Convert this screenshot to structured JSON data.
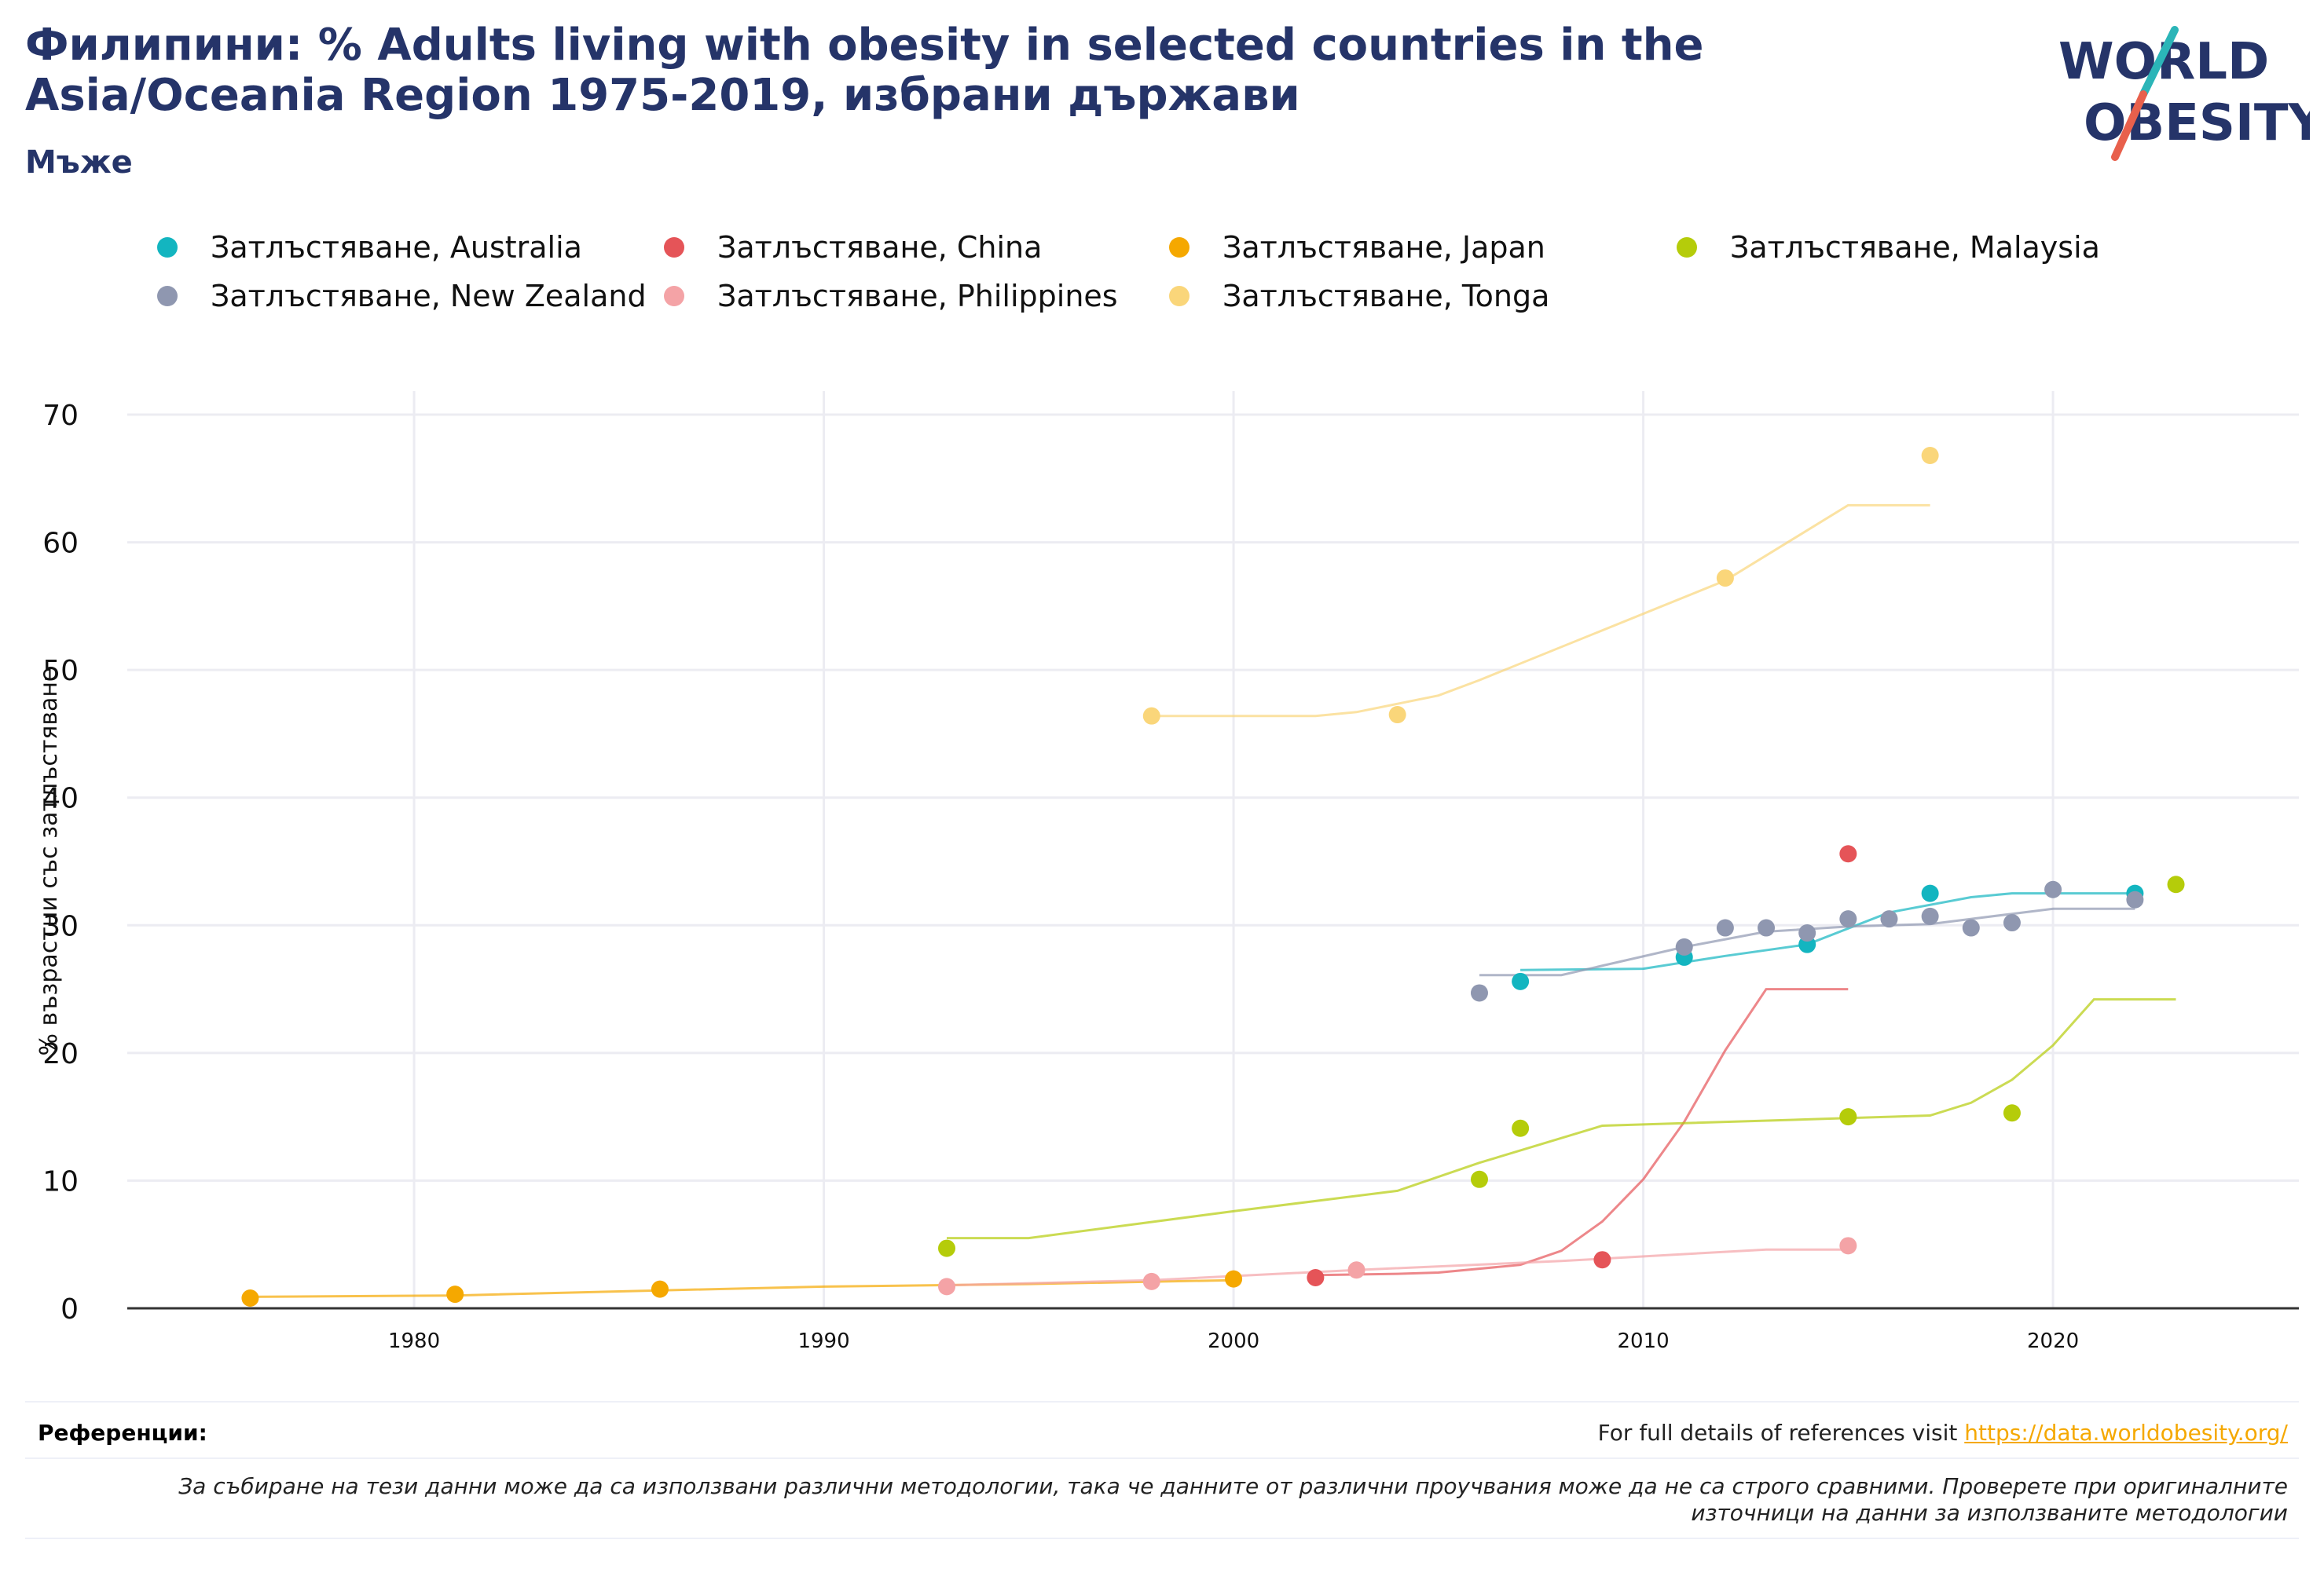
{
  "header": {
    "title": "Филипини: % Adults living with obesity in selected countries in the Asia/Oceania Region 1975-2019, избрани държави",
    "subtitle": "Мъже"
  },
  "logo": {
    "line1": "WORLD",
    "line2": "OBESITY",
    "text_color": "#253469",
    "slash_top_color": "#2bb5b8",
    "slash_bottom_color": "#e8604c"
  },
  "legend": [
    {
      "label": "Затлъстяване, Australia",
      "color": "#13b5c0"
    },
    {
      "label": "Затлъстяване, China",
      "color": "#e55458"
    },
    {
      "label": "Затлъстяване, Japan",
      "color": "#f5a800"
    },
    {
      "label": "Затлъстяване, Malaysia",
      "color": "#b5cc0a"
    },
    {
      "label": "Затлъстяване, New Zealand",
      "color": "#8f97b0"
    },
    {
      "label": "Затлъстяване, Philippines",
      "color": "#f4a3a6"
    },
    {
      "label": "Затлъстяване, Tonga",
      "color": "#fad67a"
    }
  ],
  "chart_data": {
    "type": "scatter",
    "ylabel": "% възрастни със затлъстяване",
    "xlabel": "",
    "xlim": [
      1973,
      2026
    ],
    "ylim": [
      0,
      70
    ],
    "x_ticks": [
      1980,
      1990,
      2000,
      2010,
      2020
    ],
    "y_ticks": [
      0,
      10,
      20,
      30,
      40,
      50,
      60,
      70
    ],
    "grid": true,
    "legend_position": "top",
    "series": [
      {
        "name": "Затлъстяване, Australia",
        "color": "#13b5c0",
        "points": [
          [
            2007,
            25.6
          ],
          [
            2011,
            27.5
          ],
          [
            2014,
            28.5
          ],
          [
            2017,
            32.5
          ],
          [
            2022,
            32.5
          ]
        ],
        "trend": [
          [
            2007,
            26.5
          ],
          [
            2010,
            26.6
          ],
          [
            2012,
            27.6
          ],
          [
            2014,
            28.5
          ],
          [
            2016,
            31.0
          ],
          [
            2018,
            32.2
          ],
          [
            2019,
            32.5
          ],
          [
            2022,
            32.5
          ]
        ]
      },
      {
        "name": "Затлъстяване, China",
        "color": "#e55458",
        "points": [
          [
            2002,
            2.4
          ],
          [
            2009,
            3.8
          ],
          [
            2015,
            35.6
          ]
        ],
        "trend": [
          [
            2002,
            2.6
          ],
          [
            2004,
            2.7
          ],
          [
            2005,
            2.8
          ],
          [
            2007,
            3.4
          ],
          [
            2008,
            4.5
          ],
          [
            2009,
            6.8
          ],
          [
            2010,
            10.1
          ],
          [
            2011,
            14.6
          ],
          [
            2012,
            20.2
          ],
          [
            2013,
            25.0
          ],
          [
            2015,
            25.0
          ]
        ]
      },
      {
        "name": "Затлъстяване, Japan",
        "color": "#f5a800",
        "points": [
          [
            1976,
            0.8
          ],
          [
            1981,
            1.1
          ],
          [
            1986,
            1.5
          ],
          [
            2000,
            2.3
          ]
        ],
        "trend": [
          [
            1976,
            0.9
          ],
          [
            1981,
            1.0
          ],
          [
            1986,
            1.4
          ],
          [
            1990,
            1.7
          ],
          [
            1995,
            1.9
          ],
          [
            2000,
            2.2
          ]
        ]
      },
      {
        "name": "Затлъстяване, Malaysia",
        "color": "#b5cc0a",
        "points": [
          [
            1993,
            4.7
          ],
          [
            2006,
            10.1
          ],
          [
            2007,
            14.1
          ],
          [
            2015,
            15.0
          ],
          [
            2019,
            15.3
          ],
          [
            2023,
            33.2
          ]
        ],
        "trend": [
          [
            1993,
            5.5
          ],
          [
            1995,
            5.5
          ],
          [
            2000,
            7.6
          ],
          [
            2004,
            9.2
          ],
          [
            2006,
            11.4
          ],
          [
            2009,
            14.3
          ],
          [
            2015,
            14.9
          ],
          [
            2017,
            15.1
          ],
          [
            2018,
            16.1
          ],
          [
            2019,
            17.9
          ],
          [
            2020,
            20.6
          ],
          [
            2021,
            24.2
          ],
          [
            2023,
            24.2
          ]
        ]
      },
      {
        "name": "Затлъстяване, New Zealand",
        "color": "#8f97b0",
        "points": [
          [
            2006,
            24.7
          ],
          [
            2011,
            28.3
          ],
          [
            2012,
            29.8
          ],
          [
            2013,
            29.8
          ],
          [
            2014,
            29.4
          ],
          [
            2015,
            30.5
          ],
          [
            2016,
            30.5
          ],
          [
            2017,
            30.7
          ],
          [
            2018,
            29.8
          ],
          [
            2019,
            30.2
          ],
          [
            2020,
            32.8
          ],
          [
            2022,
            32.0
          ]
        ],
        "trend": [
          [
            2006,
            26.1
          ],
          [
            2008,
            26.1
          ],
          [
            2011,
            28.3
          ],
          [
            2013,
            29.5
          ],
          [
            2015,
            29.9
          ],
          [
            2017,
            30.1
          ],
          [
            2019,
            30.9
          ],
          [
            2020,
            31.3
          ],
          [
            2022,
            31.3
          ]
        ]
      },
      {
        "name": "Затлъстяване, Philippines",
        "color": "#f4a3a6",
        "points": [
          [
            1993,
            1.7
          ],
          [
            1998,
            2.1
          ],
          [
            2003,
            3.0
          ],
          [
            2015,
            4.9
          ]
        ],
        "trend": [
          [
            1993,
            1.8
          ],
          [
            1998,
            2.2
          ],
          [
            2003,
            3.0
          ],
          [
            2008,
            3.7
          ],
          [
            2013,
            4.6
          ],
          [
            2015,
            4.6
          ]
        ]
      },
      {
        "name": "Затлъстяване, Tonga",
        "color": "#fad67a",
        "points": [
          [
            1998,
            46.4
          ],
          [
            2004,
            46.5
          ],
          [
            2012,
            57.2
          ],
          [
            2017,
            66.8
          ]
        ],
        "trend": [
          [
            1998,
            46.4
          ],
          [
            2002,
            46.4
          ],
          [
            2003,
            46.7
          ],
          [
            2005,
            48.0
          ],
          [
            2006,
            49.2
          ],
          [
            2012,
            57.0
          ],
          [
            2015,
            62.9
          ],
          [
            2017,
            62.9
          ]
        ]
      }
    ]
  },
  "references": {
    "label": "Референции:",
    "text": "For full details of references visit",
    "link": "https://data.worldobesity.org/",
    "note": "За събиране на тези данни може да са използвани различни методологии, така че данните от различни проучвания може да не са строго сравними. Проверете при оригиналните източници на данни за използваните методологии"
  }
}
